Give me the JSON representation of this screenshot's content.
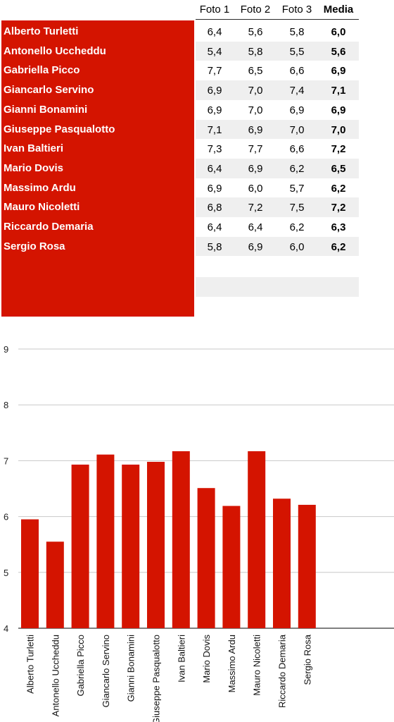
{
  "table": {
    "headers": [
      "Foto 1",
      "Foto 2",
      "Foto 3",
      "Media"
    ],
    "rows": [
      {
        "name": "Alberto Turletti",
        "f1": "6,4",
        "f2": "5,6",
        "f3": "5,8",
        "media": "6,0"
      },
      {
        "name": "Antonello Uccheddu",
        "f1": "5,4",
        "f2": "5,8",
        "f3": "5,5",
        "media": "5,6"
      },
      {
        "name": "Gabriella Picco",
        "f1": "7,7",
        "f2": "6,5",
        "f3": "6,6",
        "media": "6,9"
      },
      {
        "name": "Giancarlo Servino",
        "f1": "6,9",
        "f2": "7,0",
        "f3": "7,4",
        "media": "7,1"
      },
      {
        "name": "Gianni Bonamini",
        "f1": "6,9",
        "f2": "7,0",
        "f3": "6,9",
        "media": "6,9"
      },
      {
        "name": "Giuseppe Pasqualotto",
        "f1": "7,1",
        "f2": "6,9",
        "f3": "7,0",
        "media": "7,0"
      },
      {
        "name": "Ivan Baltieri",
        "f1": "7,3",
        "f2": "7,7",
        "f3": "6,6",
        "media": "7,2"
      },
      {
        "name": "Mario Dovis",
        "f1": "6,4",
        "f2": "6,9",
        "f3": "6,2",
        "media": "6,5"
      },
      {
        "name": "Massimo Ardu",
        "f1": "6,9",
        "f2": "6,0",
        "f3": "5,7",
        "media": "6,2"
      },
      {
        "name": "Mauro Nicoletti",
        "f1": "6,8",
        "f2": "7,2",
        "f3": "7,5",
        "media": "7,2"
      },
      {
        "name": "Riccardo Demaria",
        "f1": "6,4",
        "f2": "6,4",
        "f3": "6,2",
        "media": "6,3"
      },
      {
        "name": "Sergio Rosa",
        "f1": "5,8",
        "f2": "6,9",
        "f3": "6,0",
        "media": "6,2"
      }
    ]
  },
  "colors": {
    "accent": "#d41400",
    "stripe": "#efefef",
    "grid": "#c8c8c8"
  },
  "chart_data": {
    "type": "bar",
    "title": "",
    "xlabel": "",
    "ylabel": "",
    "categories": [
      "Alberto Turletti",
      "Antonello Uccheddu",
      "Gabriella Picco",
      "Giancarlo Servino",
      "Gianni Bonamini",
      "Giuseppe Pasqualotto",
      "Ivan Baltieri",
      "Mario Dovis",
      "Massimo Ardu",
      "Mauro Nicoletti",
      "Riccardo Demaria",
      "Sergio Rosa",
      "",
      "",
      ""
    ],
    "values": [
      5.95,
      5.55,
      6.93,
      7.11,
      6.93,
      6.98,
      7.17,
      6.51,
      6.19,
      7.17,
      6.32,
      6.21,
      null,
      null,
      null
    ],
    "ylim": [
      4,
      9
    ],
    "yticks": [
      4,
      5,
      6,
      7,
      8,
      9
    ],
    "grid": true,
    "legend": "none",
    "bar_color": "#d41400"
  }
}
